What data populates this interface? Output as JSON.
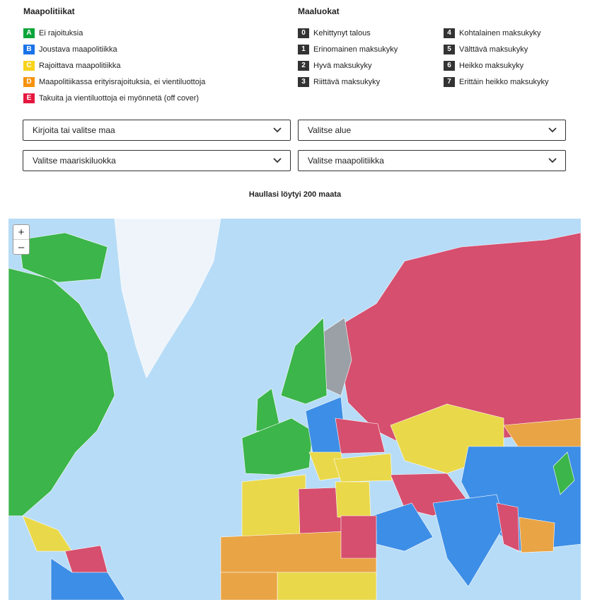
{
  "policies": {
    "title": "Maapolitiikat",
    "items": [
      {
        "code": "A",
        "label": "Ei rajoituksia",
        "color": "#0aa53a"
      },
      {
        "code": "B",
        "label": "Joustava maapolitiikka",
        "color": "#1a73e8"
      },
      {
        "code": "C",
        "label": "Rajoittava maapolitiikka",
        "color": "#f7d31a"
      },
      {
        "code": "D",
        "label": "Maapolitiikassa erityisrajoituksia, ei vientiluottoja",
        "color": "#f7920f"
      },
      {
        "code": "E",
        "label": "Takuita ja vientiluottoja ei myönnetä (off cover)",
        "color": "#e5173f"
      }
    ]
  },
  "classes": {
    "title": "Maaluokat",
    "items": [
      {
        "code": "0",
        "label": "Kehittynyt talous"
      },
      {
        "code": "1",
        "label": "Erinomainen maksukyky"
      },
      {
        "code": "2",
        "label": "Hyvä maksukyky"
      },
      {
        "code": "3",
        "label": "Riittävä maksukyky"
      },
      {
        "code": "4",
        "label": "Kohtalainen maksukyky"
      },
      {
        "code": "5",
        "label": "Välttävä maksukyky"
      },
      {
        "code": "6",
        "label": "Heikko maksukyky"
      },
      {
        "code": "7",
        "label": "Erittäin heikko maksukyky"
      }
    ]
  },
  "filters": {
    "country": "Kirjoita tai valitse maa",
    "region": "Valitse alue",
    "risk_class": "Valitse maariskiluokka",
    "policy": "Valitse maapolitiikka"
  },
  "result_text": "Haullasi löytyi 200 maata",
  "map": {
    "zoom_in": "+",
    "zoom_out": "–",
    "colors": {
      "ocean": "#b7dcf7",
      "A": "#3cb54a",
      "B": "#3d8ee6",
      "C": "#e9d84a",
      "D": "#e9a445",
      "E": "#d64f6e",
      "no_data": "#9aa0a6",
      "greenland": "#eef4fa"
    }
  }
}
